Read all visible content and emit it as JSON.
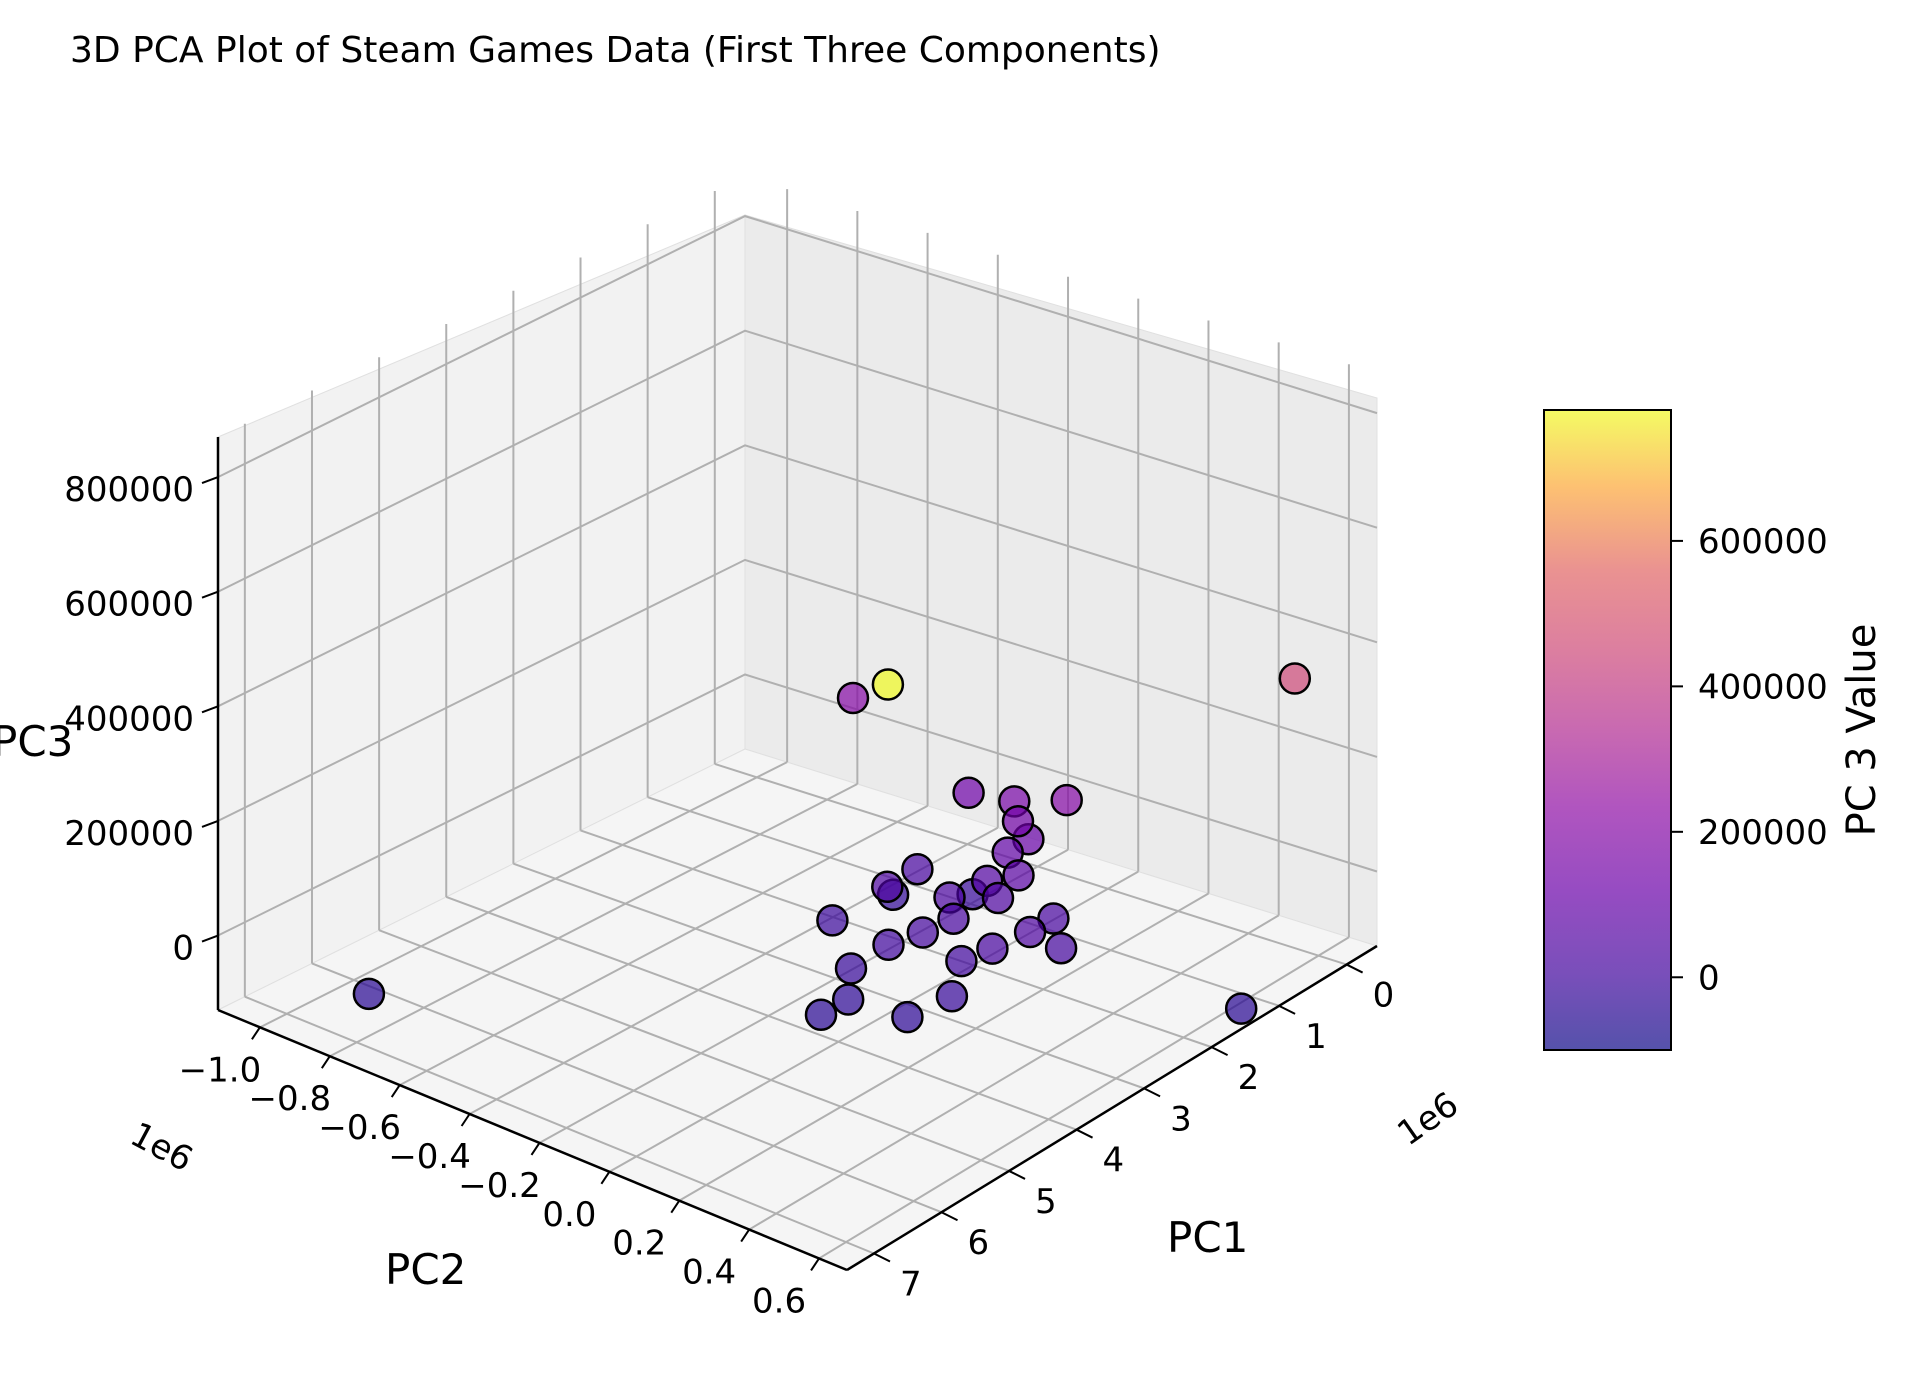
{
  "chart_data": {
    "type": "scatter",
    "title": "3D PCA Plot of Steam Games Data (First Three Components)",
    "xlabel": "PC1",
    "ylabel": "PC2",
    "zlabel": "PC3",
    "x_offset_text": "1e6",
    "y_offset_text": "1e6",
    "x_ticks": [
      "0",
      "1",
      "2",
      "3",
      "4",
      "5",
      "6",
      "7"
    ],
    "y_ticks": [
      "−1.0",
      "−0.8",
      "−0.6",
      "−0.4",
      "−0.2",
      "0.0",
      "0.2",
      "0.4",
      "0.6"
    ],
    "z_ticks": [
      "0",
      "200000",
      "400000",
      "600000",
      "800000"
    ],
    "colorbar": {
      "label": "PC 3 Value",
      "ticks": [
        "0",
        "200000",
        "400000",
        "600000"
      ],
      "range": [
        -100000,
        780000
      ],
      "colormap": "plasma",
      "alpha": 0.7
    },
    "marker": {
      "edge_color": "#000000"
    },
    "points": [
      {
        "pc1": 5.3,
        "pc2": 0.4,
        "pc3": 780000
      },
      {
        "pc1": 0.9,
        "pc2": -0.55,
        "pc3": 200000
      },
      {
        "pc1": 0.05,
        "pc2": 0.55,
        "pc3": 450000
      },
      {
        "pc1": 1.0,
        "pc2": -0.2,
        "pc3": 130000
      },
      {
        "pc1": 1.1,
        "pc2": 0.1,
        "pc3": 200000
      },
      {
        "pc1": 1.6,
        "pc2": -0.3,
        "pc3": -30000
      },
      {
        "pc1": 6.0,
        "pc2": -0.95,
        "pc3": -50000
      },
      {
        "pc1": 1.2,
        "pc2": -0.15,
        "pc3": -20000
      },
      {
        "pc1": 1.0,
        "pc2": 0.58,
        "pc3": -50000
      },
      {
        "pc1": 1.1,
        "pc2": -0.05,
        "pc3": 160000
      },
      {
        "pc1": 1.2,
        "pc2": -0.02,
        "pc3": 140000
      },
      {
        "pc1": 1.15,
        "pc2": 0.0,
        "pc3": 110000
      },
      {
        "pc1": 1.3,
        "pc2": -0.03,
        "pc3": 90000
      },
      {
        "pc1": 1.4,
        "pc2": 0.02,
        "pc3": 70000
      },
      {
        "pc1": 1.5,
        "pc2": -0.05,
        "pc3": 50000
      },
      {
        "pc1": 1.6,
        "pc2": 0.0,
        "pc3": 40000
      },
      {
        "pc1": 1.8,
        "pc2": -0.1,
        "pc3": 30000
      },
      {
        "pc1": 2.0,
        "pc2": -0.05,
        "pc3": 20000
      },
      {
        "pc1": 2.3,
        "pc2": -0.08,
        "pc3": 10000
      },
      {
        "pc1": 2.6,
        "pc2": -0.12,
        "pc3": 0
      },
      {
        "pc1": 3.0,
        "pc2": -0.15,
        "pc3": -20000
      },
      {
        "pc1": 3.3,
        "pc2": -0.1,
        "pc3": -40000
      },
      {
        "pc1": 3.6,
        "pc2": -0.12,
        "pc3": -50000
      },
      {
        "pc1": 2.5,
        "pc2": -0.3,
        "pc3": -10000
      },
      {
        "pc1": 2.2,
        "pc2": 0.1,
        "pc3": 20000
      },
      {
        "pc1": 1.9,
        "pc2": 0.15,
        "pc3": 40000
      },
      {
        "pc1": 1.5,
        "pc2": -0.25,
        "pc3": 20000
      },
      {
        "pc1": 2.1,
        "pc2": -0.22,
        "pc3": 40000
      },
      {
        "pc1": 1.4,
        "pc2": 0.12,
        "pc3": 20000
      },
      {
        "pc1": 1.7,
        "pc2": 0.2,
        "pc3": 10000
      },
      {
        "pc1": 3.2,
        "pc2": 0.05,
        "pc3": -40000
      },
      {
        "pc1": 2.8,
        "pc2": 0.1,
        "pc3": -20000
      },
      {
        "pc1": 2.4,
        "pc2": 0.05,
        "pc3": 0
      }
    ]
  }
}
